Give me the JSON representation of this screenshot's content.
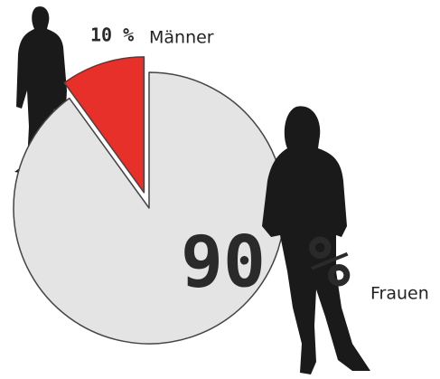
{
  "chart_data": {
    "type": "pie",
    "categories": [
      "Männer",
      "Frauen"
    ],
    "values": [
      10,
      90
    ],
    "value_labels": [
      "10 %",
      "90 %"
    ],
    "colors": [
      "#e8302a",
      "#e4e4e4"
    ]
  }
}
